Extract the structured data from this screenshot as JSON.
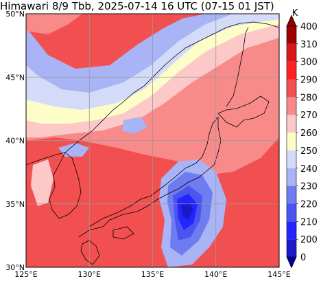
{
  "title": "Himawari 8/9 Tbb, 2025-07-14 16 UTC (07-15 01 JST)",
  "map": {
    "lon_range": [
      125,
      145
    ],
    "lat_range": [
      30,
      50
    ],
    "lon_ticks": [
      {
        "value": 125,
        "label": "125°E"
      },
      {
        "value": 130,
        "label": "130°E"
      },
      {
        "value": 135,
        "label": "135°E"
      },
      {
        "value": 140,
        "label": "140°E"
      },
      {
        "value": 145,
        "label": "145°E"
      }
    ],
    "lat_ticks": [
      {
        "value": 30,
        "label": "30°N"
      },
      {
        "value": 35,
        "label": "35°N"
      },
      {
        "value": 40,
        "label": "40°N"
      },
      {
        "value": 45,
        "label": "45°N"
      },
      {
        "value": 50,
        "label": "50°N"
      }
    ],
    "grid": true
  },
  "colorbar": {
    "unit": "K",
    "levels": [
      {
        "value": 200,
        "label": "200",
        "color": "#1a1ac8"
      },
      {
        "value": 210,
        "label": "210",
        "color": "#2424ff"
      },
      {
        "value": 220,
        "label": "220",
        "color": "#4a55f0"
      },
      {
        "value": 230,
        "label": "230",
        "color": "#6f7cf0"
      },
      {
        "value": 240,
        "label": "240",
        "color": "#a8b4f5"
      },
      {
        "value": 250,
        "label": "250",
        "color": "#d4dbf8"
      },
      {
        "value": 260,
        "label": "260",
        "color": "#fdfdc8"
      },
      {
        "value": 270,
        "label": "270",
        "color": "#fcc8c8"
      },
      {
        "value": 280,
        "label": "280",
        "color": "#f88a8a"
      },
      {
        "value": 290,
        "label": "290",
        "color": "#f25050"
      },
      {
        "value": 300,
        "label": "300",
        "color": "#ff2020"
      },
      {
        "value": 310,
        "label": "310",
        "color": "#d71818"
      },
      {
        "value": 400,
        "label": "400",
        "color": "#a00000"
      }
    ],
    "bottom_label": "0",
    "below_color": "#00009a",
    "above_color": "#8b0000"
  },
  "colors": {
    "background_warm": "#f25050",
    "grid": "#9a9a9a"
  }
}
